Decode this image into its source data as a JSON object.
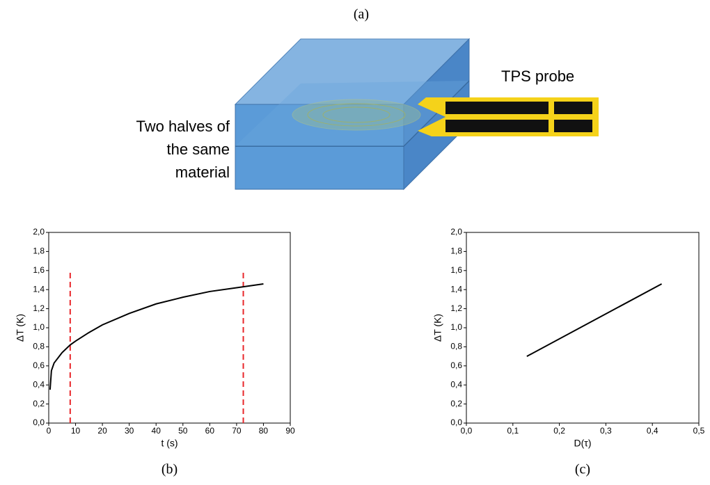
{
  "panel_a": {
    "label": "(a)",
    "material_lines": [
      "Two halves of",
      "the same",
      "material"
    ],
    "probe_label": "TPS probe"
  },
  "chart_data": [
    {
      "type": "line",
      "caption": "(b)",
      "xlabel": "t (s)",
      "ylabel": "ΔT (K)",
      "x": [
        0.5,
        1,
        2,
        5,
        8,
        10,
        15,
        20,
        30,
        40,
        50,
        60,
        70,
        80
      ],
      "series": [
        {
          "color": "#000000",
          "values": [
            0.35,
            0.55,
            0.63,
            0.74,
            0.82,
            0.86,
            0.95,
            1.03,
            1.15,
            1.25,
            1.32,
            1.38,
            1.42,
            1.46
          ]
        }
      ],
      "vlines": [
        8,
        72.5
      ],
      "vline_ymax": 1.6,
      "vline_color": "#e8262a",
      "xlim": [
        0,
        90
      ],
      "xticks": [
        0,
        10,
        20,
        30,
        40,
        50,
        60,
        70,
        80,
        90
      ],
      "ylim": [
        0,
        2
      ],
      "yticks": [
        {
          "value": 0,
          "label": "0,0"
        },
        {
          "value": 0.2,
          "label": "0,2"
        },
        {
          "value": 0.4,
          "label": "0,4"
        },
        {
          "value": 0.6,
          "label": "0,6"
        },
        {
          "value": 0.8,
          "label": "0,8"
        },
        {
          "value": 1,
          "label": "1,0"
        },
        {
          "value": 1.2,
          "label": "1,2"
        },
        {
          "value": 1.4,
          "label": "1,4"
        },
        {
          "value": 1.6,
          "label": "1,6"
        },
        {
          "value": 1.8,
          "label": "1,8"
        },
        {
          "value": 2,
          "label": "2,0"
        }
      ]
    },
    {
      "type": "line",
      "caption": "(c)",
      "xlabel": "D(τ)",
      "ylabel": "ΔT (K)",
      "x": [
        0.13,
        0.42
      ],
      "series": [
        {
          "color": "#000000",
          "values": [
            0.7,
            1.46
          ]
        }
      ],
      "xlim": [
        0,
        0.5
      ],
      "xticks": [
        {
          "value": 0,
          "label": "0,0"
        },
        {
          "value": 0.1,
          "label": "0,1"
        },
        {
          "value": 0.2,
          "label": "0,2"
        },
        {
          "value": 0.3,
          "label": "0,3"
        },
        {
          "value": 0.4,
          "label": "0,4"
        },
        {
          "value": 0.5,
          "label": "0,5"
        }
      ],
      "ylim": [
        0,
        2
      ],
      "yticks": [
        {
          "value": 0,
          "label": "0,0"
        },
        {
          "value": 0.2,
          "label": "0,2"
        },
        {
          "value": 0.4,
          "label": "0,4"
        },
        {
          "value": 0.6,
          "label": "0,6"
        },
        {
          "value": 0.8,
          "label": "0,8"
        },
        {
          "value": 1,
          "label": "1,0"
        },
        {
          "value": 1.2,
          "label": "1,2"
        },
        {
          "value": 1.4,
          "label": "1,4"
        },
        {
          "value": 1.6,
          "label": "1,6"
        },
        {
          "value": 1.8,
          "label": "1,8"
        },
        {
          "value": 2,
          "label": "2,0"
        }
      ]
    }
  ]
}
